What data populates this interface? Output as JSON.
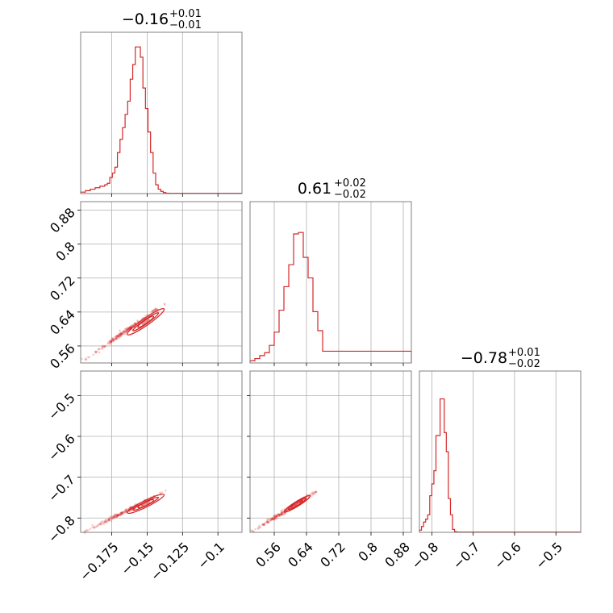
{
  "figure": {
    "style": "corner-plot",
    "color": "#d62728",
    "grid": true
  },
  "chart_data": [
    {
      "panel": "hist-0",
      "type": "histogram",
      "title": {
        "main": "−0.16",
        "sup": "+0.01",
        "sub": "−0.01"
      },
      "xlim": [
        -0.197,
        -0.083
      ],
      "xticks": [
        -0.175,
        -0.15,
        -0.125,
        -0.1
      ],
      "bin_edges": [
        -0.197,
        -0.1936,
        -0.1902,
        -0.1868,
        -0.1834,
        -0.18,
        -0.1782,
        -0.1764,
        -0.1746,
        -0.1728,
        -0.171,
        -0.1692,
        -0.1674,
        -0.1656,
        -0.1638,
        -0.162,
        -0.1602,
        -0.1584,
        -0.1566,
        -0.1548,
        -0.153,
        -0.1512,
        -0.1494,
        -0.1476,
        -0.1458,
        -0.144,
        -0.1422,
        -0.1404,
        -0.1386,
        -0.1368,
        -0.135,
        -0.083
      ],
      "counts": [
        0.01,
        0.02,
        0.03,
        0.04,
        0.05,
        0.06,
        0.07,
        0.11,
        0.14,
        0.18,
        0.28,
        0.37,
        0.45,
        0.54,
        0.63,
        0.78,
        0.88,
        1.0,
        1.0,
        0.93,
        0.72,
        0.58,
        0.42,
        0.28,
        0.14,
        0.06,
        0.03,
        0.015,
        0.007,
        0.003,
        0.002
      ]
    },
    {
      "panel": "hist-1",
      "type": "histogram",
      "title": {
        "main": "0.61",
        "sup": "+0.02",
        "sub": "−0.02"
      },
      "xlim": [
        0.5,
        0.9
      ],
      "xticks": [
        0.56,
        0.64,
        0.72,
        0.8,
        0.88
      ],
      "bin_edges": [
        0.5,
        0.512,
        0.524,
        0.536,
        0.548,
        0.56,
        0.572,
        0.584,
        0.596,
        0.608,
        0.62,
        0.632,
        0.644,
        0.656,
        0.668,
        0.68,
        0.9
      ],
      "counts": [
        0.015,
        0.03,
        0.05,
        0.07,
        0.12,
        0.21,
        0.36,
        0.52,
        0.67,
        0.88,
        0.89,
        0.72,
        0.58,
        0.35,
        0.22,
        0.08
      ]
    },
    {
      "panel": "hist-2",
      "type": "histogram",
      "title": {
        "main": "−0.78",
        "sup": "+0.01",
        "sub": "−0.02"
      },
      "xlim": [
        -0.83,
        -0.44
      ],
      "xticks": [
        -0.8,
        -0.7,
        -0.6,
        -0.5
      ],
      "bin_edges": [
        -0.83,
        -0.825,
        -0.82,
        -0.815,
        -0.81,
        -0.805,
        -0.8,
        -0.795,
        -0.79,
        -0.785,
        -0.78,
        -0.775,
        -0.77,
        -0.765,
        -0.76,
        -0.755,
        -0.75,
        -0.745,
        -0.74,
        -0.44
      ],
      "counts": [
        0.015,
        0.04,
        0.07,
        0.09,
        0.12,
        0.25,
        0.33,
        0.42,
        0.66,
        0.66,
        0.91,
        0.91,
        0.68,
        0.55,
        0.23,
        0.12,
        0.02,
        0.005,
        0.002
      ]
    },
    {
      "panel": "scatter-1-0",
      "type": "scatter-contour",
      "xlim": [
        -0.197,
        -0.083
      ],
      "ylim": [
        0.52,
        0.9
      ],
      "yticks": [
        0.56,
        0.64,
        0.72,
        0.8,
        0.88
      ],
      "trend": {
        "x0": -0.194,
        "y0": 0.528,
        "x1": -0.138,
        "y1": 0.658
      },
      "contour_center": [
        -0.151,
        0.617
      ],
      "contour_levels": [
        {
          "dx": 0.013,
          "dy": 0.03
        },
        {
          "dx": 0.009,
          "dy": 0.021
        },
        {
          "dx": 0.0055,
          "dy": 0.013
        }
      ]
    },
    {
      "panel": "scatter-2-0",
      "type": "scatter-contour",
      "xlim": [
        -0.197,
        -0.083
      ],
      "ylim": [
        -0.835,
        -0.44
      ],
      "yticks": [
        -0.8,
        -0.7,
        -0.6,
        -0.5
      ],
      "trend": {
        "x0": -0.194,
        "y0": -0.833,
        "x1": -0.137,
        "y1": -0.735
      },
      "contour_center": [
        -0.151,
        -0.765
      ],
      "contour_levels": [
        {
          "dx": 0.013,
          "dy": 0.022
        },
        {
          "dx": 0.009,
          "dy": 0.015
        },
        {
          "dx": 0.0055,
          "dy": 0.009
        }
      ]
    },
    {
      "panel": "scatter-2-1",
      "type": "scatter-contour",
      "xlim": [
        0.5,
        0.9
      ],
      "ylim": [
        -0.835,
        -0.44
      ],
      "trend": {
        "x0": 0.505,
        "y0": -0.833,
        "x1": 0.665,
        "y1": -0.735
      },
      "contour_center": [
        0.617,
        -0.765
      ],
      "contour_levels": [
        {
          "dx": 0.03,
          "dy": 0.022
        },
        {
          "dx": 0.021,
          "dy": 0.015
        },
        {
          "dx": 0.013,
          "dy": 0.009
        }
      ]
    }
  ]
}
